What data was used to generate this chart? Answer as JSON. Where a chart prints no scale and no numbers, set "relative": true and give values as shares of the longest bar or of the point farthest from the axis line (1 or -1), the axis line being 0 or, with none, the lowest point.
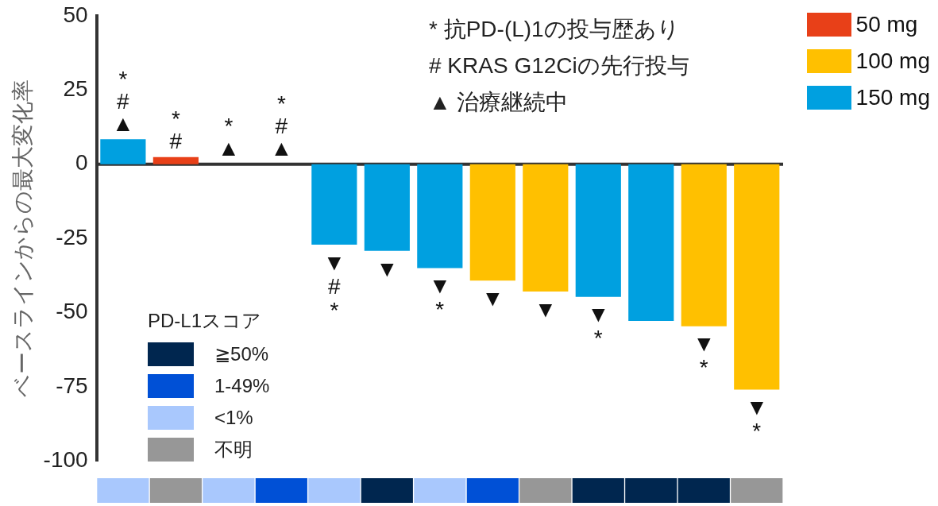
{
  "chart_data": [
    {
      "type": "bar",
      "ylabel": "ベースラインからの最大変化率",
      "categories": [
        null,
        null,
        null,
        null,
        null,
        null,
        null,
        null,
        null,
        null,
        null,
        null,
        null
      ],
      "series": [
        {
          "name": "50 mg",
          "color": "#e84018",
          "values": [
            null,
            2.4,
            null,
            null,
            null,
            null,
            null,
            null,
            null,
            null,
            null,
            null,
            null
          ]
        },
        {
          "name": "100 mg",
          "color": "#ffc000",
          "values": [
            null,
            null,
            null,
            null,
            null,
            null,
            null,
            -39.2,
            -42.9,
            null,
            null,
            -54.6,
            -76
          ]
        },
        {
          "name": "150 mg",
          "color": "#00a0e0",
          "values": [
            8.4,
            null,
            null,
            null,
            -27.1,
            -29.2,
            -35,
            null,
            null,
            -44.7,
            -52.8,
            null,
            null
          ]
        }
      ],
      "value_labels": [
        "*\n#\n▲",
        "*\n#",
        "*\n▲",
        "*\n#\n▲",
        "▼\n#\n*",
        "▼",
        "▼\n*",
        "▼",
        "▼",
        "▼\n*",
        null,
        "▼\n*",
        "▼\n*"
      ],
      "ylim": [
        -100,
        50
      ],
      "yticks": [
        50,
        25,
        0,
        -25,
        -50,
        -75,
        -100
      ],
      "grid": false,
      "legend": "top right",
      "ref_lines": [
        {
          "axis": "y",
          "value": 0,
          "color": "#333333"
        }
      ],
      "annotations": [
        "* 抗PD-(L)1の投与歴あり",
        "# KRAS G12Ciの先行投与",
        "▲ 治療継続中"
      ]
    },
    {
      "type": "bar",
      "relative": true,
      "legend_title": "PD-L1スコア",
      "legend": "top left",
      "categories": [
        null,
        null,
        null,
        null,
        null,
        null,
        null,
        null,
        null,
        null,
        null,
        null,
        null
      ],
      "series": [
        {
          "name": "≧50%",
          "color": "#00264f",
          "values": [
            null,
            null,
            null,
            null,
            null,
            1,
            null,
            null,
            null,
            1,
            1,
            1,
            null
          ]
        },
        {
          "name": "1-49%",
          "color": "#0050d6",
          "values": [
            null,
            null,
            null,
            1,
            null,
            null,
            null,
            1,
            null,
            null,
            null,
            null,
            null
          ]
        },
        {
          "name": "<1%",
          "color": "#a9c8fd",
          "values": [
            1,
            null,
            1,
            null,
            1,
            null,
            1,
            null,
            null,
            null,
            null,
            null,
            null
          ]
        },
        {
          "name": "不明",
          "color": "#979797",
          "values": [
            null,
            1,
            null,
            null,
            null,
            null,
            null,
            null,
            1,
            null,
            null,
            null,
            1
          ]
        }
      ]
    }
  ]
}
